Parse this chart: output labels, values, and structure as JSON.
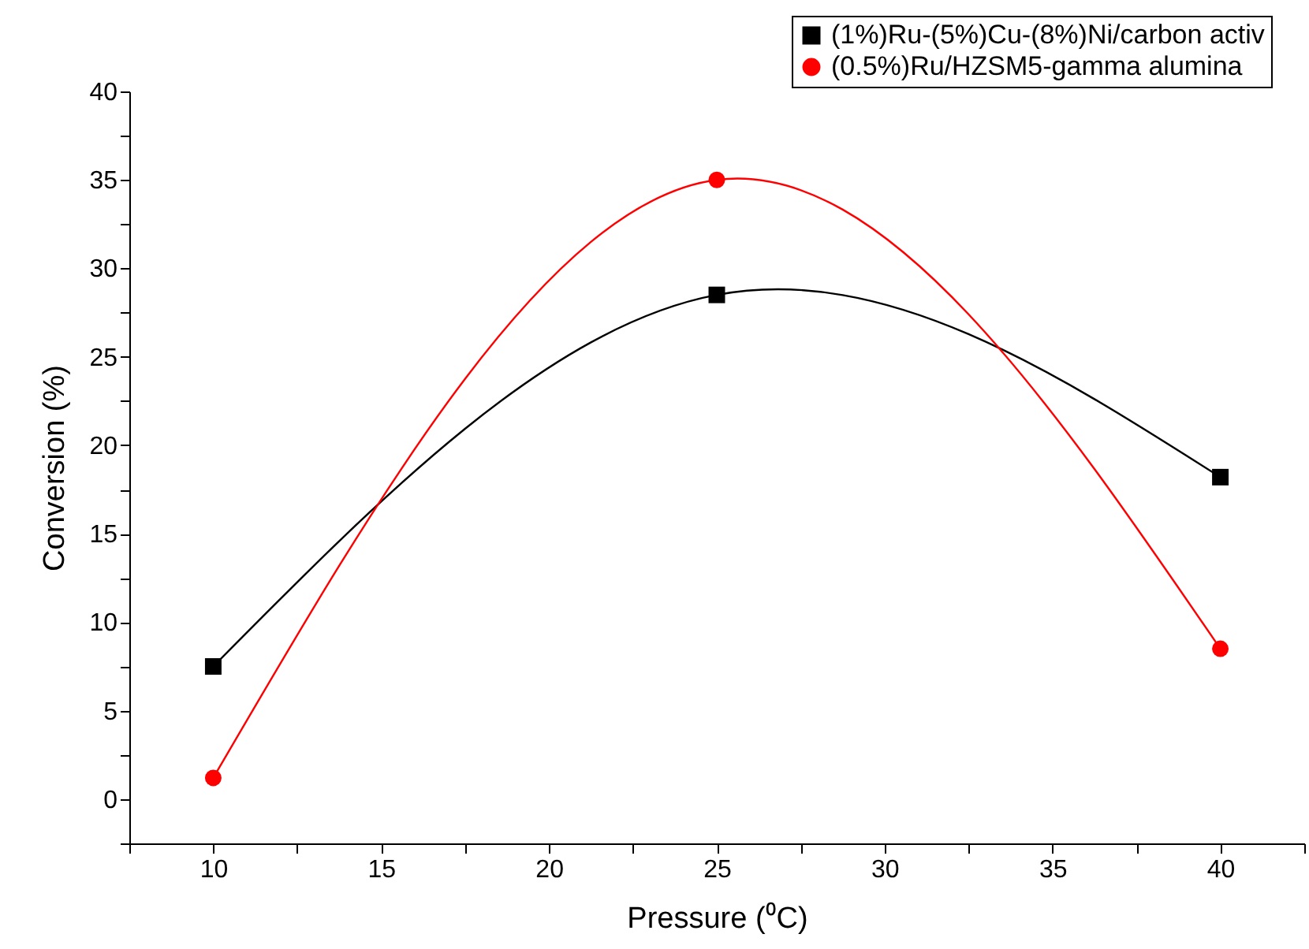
{
  "chart_data": {
    "type": "line",
    "xlabel": "Pressure (⁰C)",
    "ylabel": "Conversion (%)",
    "x": [
      10,
      25,
      40
    ],
    "series": [
      {
        "name": "(1%)Ru-(5%)Cu-(8%)Ni/carbon activ",
        "color": "#000000",
        "marker": "square",
        "values": [
          7.5,
          28.5,
          18.2
        ]
      },
      {
        "name": "(0.5%)Ru/HZSM5-gamma alumina",
        "color": "#ff0000",
        "marker": "circle",
        "values": [
          1.2,
          35,
          8.5
        ]
      }
    ],
    "xlim": [
      7.5,
      42.5
    ],
    "xticks": [
      {
        "value": 7.5,
        "label": null
      },
      10,
      {
        "value": 12.5,
        "label": null
      },
      15,
      {
        "value": 17.5,
        "label": null
      },
      20,
      {
        "value": 22.5,
        "label": null
      },
      25,
      {
        "value": 27.5,
        "label": null
      },
      30,
      {
        "value": 32.5,
        "label": null
      },
      35,
      {
        "value": 37.5,
        "label": null
      },
      40,
      {
        "value": 42.5,
        "label": null
      }
    ],
    "ylim": [
      -2.5,
      40
    ],
    "yticks": [
      {
        "value": -2.5,
        "label": null
      },
      0,
      {
        "value": 2.5,
        "label": null
      },
      5,
      {
        "value": 7.5,
        "label": null
      },
      10,
      {
        "value": 12.5,
        "label": null
      },
      15,
      {
        "value": 17.5,
        "label": null
      },
      20,
      {
        "value": 22.5,
        "label": null
      },
      25,
      {
        "value": 27.5,
        "label": null
      },
      30,
      {
        "value": 32.5,
        "label": null
      },
      35,
      {
        "value": 37.5,
        "label": null
      },
      40
    ],
    "grid": false,
    "legend": "top right",
    "line_style": "solid"
  }
}
